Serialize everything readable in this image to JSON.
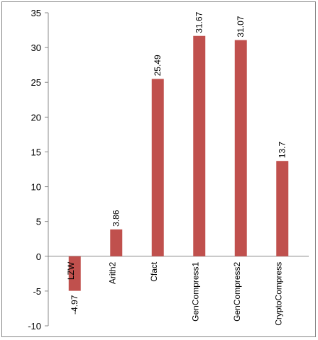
{
  "chart_data": {
    "type": "bar",
    "categories": [
      "LZW",
      "Arith2",
      "Cfact",
      "GenCompress1",
      "GenCompress2",
      "CryptoCompress"
    ],
    "values": [
      -4.97,
      3.86,
      25.49,
      31.67,
      31.07,
      13.7
    ],
    "color": "#c0504d",
    "ylim": [
      -10,
      35
    ],
    "yticks": [
      -10,
      -5,
      0,
      5,
      10,
      15,
      20,
      25,
      30,
      35
    ],
    "grid": false
  }
}
